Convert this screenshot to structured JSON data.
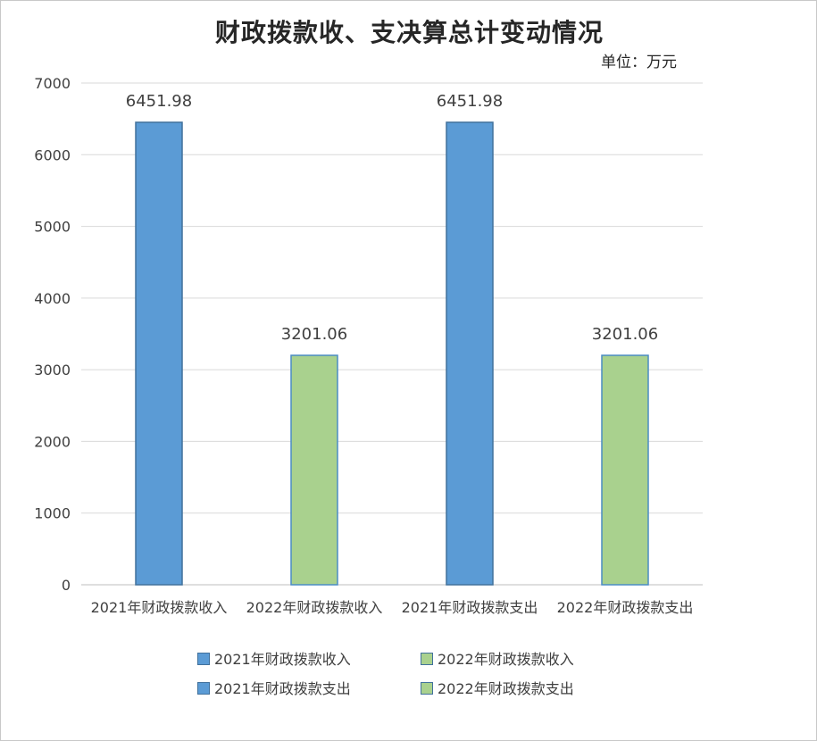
{
  "title": "财政拨款收、支决算总计变动情况",
  "unit_label": "单位：万元",
  "colors": {
    "blue": "#5b9bd5",
    "blue_border": "#41719c",
    "green": "#a9d18e",
    "green_border": "#4a8cc4",
    "grid": "#d9d9d9"
  },
  "chart_data": {
    "type": "bar",
    "categories": [
      "2021年财政拨款收入",
      "2022年财政拨款收入",
      "2021年财政拨款支出",
      "2022年财政拨款支出"
    ],
    "series": [
      {
        "name": "2021年财政拨款收入",
        "values": [
          6451.98,
          null,
          null,
          null
        ],
        "color": "#5b9bd5"
      },
      {
        "name": "2022年财政拨款收入",
        "values": [
          null,
          3201.06,
          null,
          null
        ],
        "color": "#a9d18e"
      },
      {
        "name": "2021年财政拨款支出",
        "values": [
          null,
          null,
          6451.98,
          null
        ],
        "color": "#5b9bd5"
      },
      {
        "name": "2022年财政拨款支出",
        "values": [
          null,
          null,
          null,
          3201.06
        ],
        "color": "#a9d18e"
      }
    ],
    "data_labels": [
      "6451.98",
      "3201.06",
      "6451.98",
      "3201.06"
    ],
    "yticks": [
      0,
      1000,
      2000,
      3000,
      4000,
      5000,
      6000,
      7000
    ],
    "ylim": [
      0,
      7000
    ],
    "grid": true,
    "legend_position": "bottom"
  }
}
